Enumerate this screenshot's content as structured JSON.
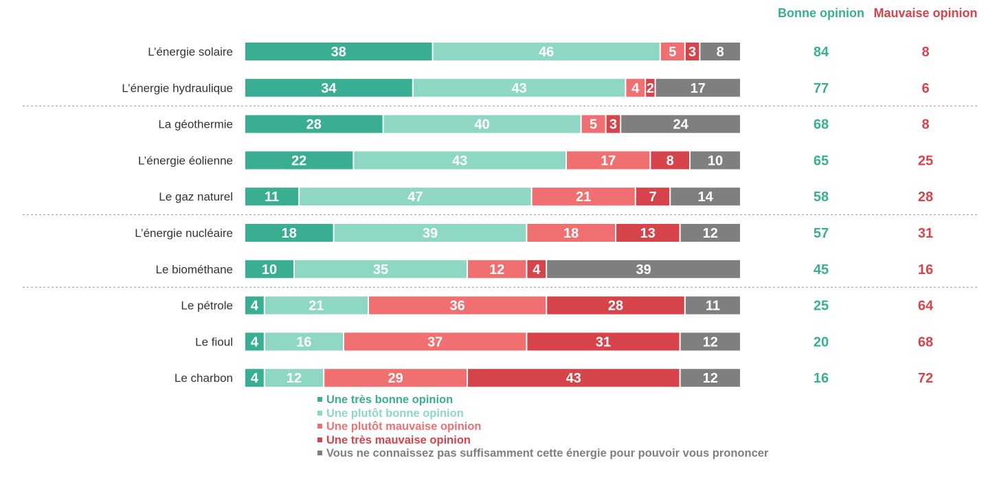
{
  "chart_data": {
    "type": "bar",
    "orientation": "horizontal",
    "stacked": true,
    "categories": [
      "L’énergie solaire",
      "L’énergie hydraulique",
      "La géothermie",
      "L’énergie éolienne",
      "Le gaz naturel",
      "L’énergie nucléaire",
      "Le biométhane",
      "Le pétrole",
      "Le fioul",
      "Le charbon"
    ],
    "series": [
      {
        "name": "Une très bonne opinion",
        "color": "#3aae93",
        "values": [
          38,
          34,
          28,
          22,
          11,
          18,
          10,
          4,
          4,
          4
        ]
      },
      {
        "name": "Une plutôt bonne opinion",
        "color": "#8fd7c5",
        "values": [
          46,
          43,
          40,
          43,
          47,
          39,
          35,
          21,
          16,
          12
        ]
      },
      {
        "name": "Une plutôt mauvaise opinion",
        "color": "#f07072",
        "values": [
          5,
          4,
          5,
          17,
          21,
          18,
          12,
          36,
          37,
          29
        ]
      },
      {
        "name": "Une très mauvaise opinion",
        "color": "#d7434a",
        "values": [
          3,
          2,
          3,
          8,
          7,
          13,
          4,
          28,
          31,
          43
        ]
      },
      {
        "name": "Vous ne connaissez pas suffisamment cette énergie pour pouvoir vous prononcer",
        "color": "#7f7f7f",
        "values": [
          8,
          17,
          24,
          10,
          14,
          12,
          39,
          11,
          12,
          12
        ]
      }
    ],
    "summary_columns": [
      {
        "title": "Bonne opinion",
        "color": "#3aae93",
        "values": [
          84,
          77,
          68,
          65,
          58,
          57,
          45,
          25,
          20,
          16
        ]
      },
      {
        "title": "Mauvaise opinion",
        "color": "#d7434a",
        "values": [
          8,
          6,
          8,
          25,
          28,
          31,
          16,
          64,
          68,
          72
        ]
      }
    ],
    "separators_after_rows": [
      1,
      4,
      6
    ],
    "legend_position": "bottom",
    "grid": false
  }
}
